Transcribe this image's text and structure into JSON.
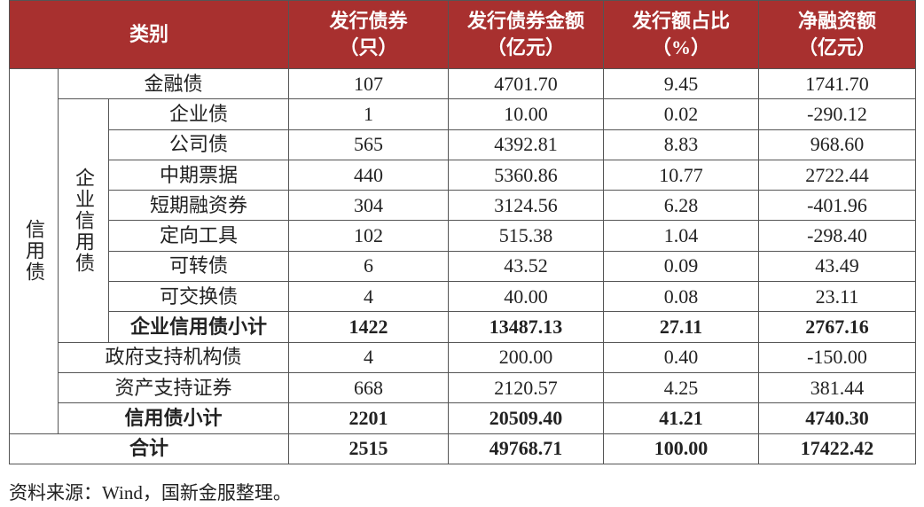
{
  "table": {
    "header": [
      {
        "name": "类别"
      },
      {
        "name": "发行债券",
        "unit": "（只）"
      },
      {
        "name": "发行债券金额",
        "unit": "（亿元）"
      },
      {
        "name": "发行额占比",
        "unit": "（%）"
      },
      {
        "name": "净融资额",
        "unit": "（亿元）"
      }
    ],
    "credit_bond_label": "信用债",
    "corporate_label": "企业信用债",
    "rows": [
      {
        "label": "金融债",
        "cells": [
          "107",
          "4701.70",
          "9.45",
          "1741.70"
        ]
      },
      {
        "label": "企业债",
        "cells": [
          "1",
          "10.00",
          "0.02",
          "-290.12"
        ]
      },
      {
        "label": "公司债",
        "cells": [
          "565",
          "4392.81",
          "8.83",
          "968.60"
        ]
      },
      {
        "label": "中期票据",
        "cells": [
          "440",
          "5360.86",
          "10.77",
          "2722.44"
        ]
      },
      {
        "label": "短期融资券",
        "cells": [
          "304",
          "3124.56",
          "6.28",
          "-401.96"
        ]
      },
      {
        "label": "定向工具",
        "cells": [
          "102",
          "515.38",
          "1.04",
          "-298.40"
        ]
      },
      {
        "label": "可转债",
        "cells": [
          "6",
          "43.52",
          "0.09",
          "43.49"
        ]
      },
      {
        "label": "可交换债",
        "cells": [
          "4",
          "40.00",
          "0.08",
          "23.11"
        ]
      },
      {
        "label": "企业信用债小计",
        "cells": [
          "1422",
          "13487.13",
          "27.11",
          "2767.16"
        ]
      },
      {
        "label": "政府支持机构债",
        "cells": [
          "4",
          "200.00",
          "0.40",
          "-150.00"
        ]
      },
      {
        "label": "资产支持证券",
        "cells": [
          "668",
          "2120.57",
          "4.25",
          "381.44"
        ]
      },
      {
        "label": "信用债小计",
        "cells": [
          "2201",
          "20509.40",
          "41.21",
          "4740.30"
        ]
      },
      {
        "label": "合计",
        "cells": [
          "2515",
          "49768.71",
          "100.00",
          "17422.42"
        ]
      }
    ]
  },
  "source": "资料来源：Wind，国新金服整理。"
}
